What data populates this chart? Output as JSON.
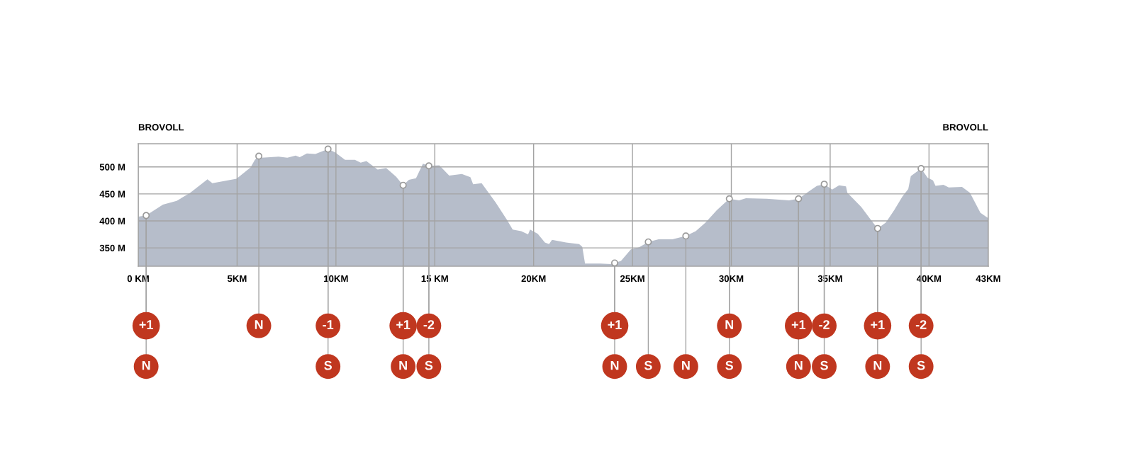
{
  "chart_data": {
    "type": "area",
    "series": [
      {
        "color": "#b6bdca",
        "x": [
          0,
          0.4,
          1.25,
          1.94,
          2.63,
          3.5,
          3.75,
          4.97,
          5.68,
          5.9,
          6.1,
          6.25,
          7.1,
          7.54,
          7.96,
          8.17,
          8.53,
          8.96,
          9.6,
          9.96,
          10.46,
          10.96,
          11.25,
          11.54,
          12.11,
          12.54,
          13.04,
          13.4,
          13.69,
          14.05,
          14.4,
          14.7,
          15.23,
          15.73,
          16.37,
          16.8,
          16.94,
          17.37,
          18.08,
          18.65,
          18.94,
          19.37,
          19.72,
          19.82,
          20.21,
          20.57,
          20.78,
          20.93,
          21.64,
          22.3,
          22.46,
          22.6,
          23.37,
          23.93,
          24.1,
          24.42,
          24.92,
          25.34,
          25.8,
          26.32,
          27.02,
          27.7,
          28.2,
          28.7,
          29.27,
          29.9,
          30.39,
          30.74,
          31.8,
          32.92,
          33.4,
          33.9,
          34.33,
          34.7,
          35.1,
          35.45,
          35.8,
          35.87,
          36.57,
          37.06,
          37.4,
          37.82,
          38.24,
          38.67,
          38.95,
          39.08,
          39.6,
          39.93,
          40.2,
          40.33,
          40.73,
          41.0,
          41.67,
          42.07,
          42.6,
          43
        ],
        "values": [
          408,
          410,
          430,
          437,
          452,
          477,
          470,
          478,
          499,
          513,
          520,
          517,
          519,
          517,
          521,
          518,
          525,
          524,
          533,
          527,
          513,
          513,
          508,
          511,
          495,
          498,
          482,
          466,
          476,
          479,
          506,
          502,
          503,
          484,
          487,
          481,
          468,
          470,
          434,
          402,
          384,
          381,
          375,
          384,
          376,
          360,
          357,
          365,
          360,
          357,
          352,
          321,
          321,
          320,
          322,
          326,
          347,
          351,
          361,
          366,
          366,
          372,
          381,
          397,
          420,
          441,
          438,
          442,
          441,
          438,
          441,
          454,
          465,
          468,
          458,
          466,
          464,
          452,
          426,
          402,
          386,
          397,
          420,
          446,
          459,
          483,
          497,
          480,
          475,
          465,
          467,
          462,
          463,
          452,
          415,
          405
        ]
      },
      {
        "type": "scatter",
        "color": "#ffffff",
        "marker": "circle",
        "x": [
          0.4,
          6.1,
          9.6,
          13.4,
          14.7,
          24.1,
          25.8,
          27.7,
          29.9,
          33.4,
          34.7,
          37.4,
          39.6
        ],
        "values": [
          410,
          520,
          533,
          466,
          502,
          322,
          361,
          372,
          441,
          441,
          468,
          386,
          497
        ]
      }
    ],
    "xlim": [
      0,
      43
    ],
    "xticks": [
      {
        "value": 0,
        "label": "0 KM"
      },
      {
        "value": 5,
        "label": "5KM"
      },
      {
        "value": 10,
        "label": "10KM"
      },
      {
        "value": 15,
        "label": "15 KM"
      },
      {
        "value": 20,
        "label": "20KM"
      },
      {
        "value": 25,
        "label": "25KM"
      },
      {
        "value": 30,
        "label": "30KM"
      },
      {
        "value": 35,
        "label": "35KM"
      },
      {
        "value": 40,
        "label": "40KM"
      },
      {
        "value": 43,
        "label": "43KM"
      }
    ],
    "ylim": [
      316,
      543
    ],
    "yticks": [
      {
        "value": 350,
        "label": "350 M"
      },
      {
        "value": 400,
        "label": "400 M"
      },
      {
        "value": 450,
        "label": "450 M"
      },
      {
        "value": 500,
        "label": "500 M"
      }
    ],
    "grid": true,
    "annotations": [
      "BROVOLL",
      "BROVOLL",
      {
        "text": "+1",
        "x": 0.4,
        "y": 410
      },
      {
        "text": "N",
        "x": 6.1,
        "y": 520
      },
      {
        "text": "-1",
        "x": 9.6,
        "y": 533
      },
      {
        "text": "+1",
        "x": 13.4,
        "y": 466
      },
      {
        "text": "-2",
        "x": 14.7,
        "y": 502
      },
      {
        "text": "+1",
        "x": 24.1,
        "y": 322
      },
      {
        "text": "N",
        "x": 29.9,
        "y": 441
      },
      {
        "text": "+1",
        "x": 33.4,
        "y": 441
      },
      {
        "text": "-2",
        "x": 34.7,
        "y": 468
      },
      {
        "text": "+1",
        "x": 37.4,
        "y": 386
      },
      {
        "text": "-2",
        "x": 39.6,
        "y": 497
      },
      {
        "text": "N",
        "x": 0.4,
        "y": 410
      },
      {
        "text": "S",
        "x": 9.6,
        "y": 533
      },
      {
        "text": "N",
        "x": 13.4,
        "y": 466
      },
      {
        "text": "S",
        "x": 14.7,
        "y": 502
      },
      {
        "text": "N",
        "x": 24.1,
        "y": 322
      },
      {
        "text": "S",
        "x": 25.8,
        "y": 361
      },
      {
        "text": "N",
        "x": 27.7,
        "y": 372
      },
      {
        "text": "S",
        "x": 29.9,
        "y": 441
      },
      {
        "text": "N",
        "x": 33.4,
        "y": 441
      },
      {
        "text": "S",
        "x": 34.7,
        "y": 468
      },
      {
        "text": "N",
        "x": 37.4,
        "y": 386
      },
      {
        "text": "S",
        "x": 39.6,
        "y": 497
      }
    ]
  }
}
